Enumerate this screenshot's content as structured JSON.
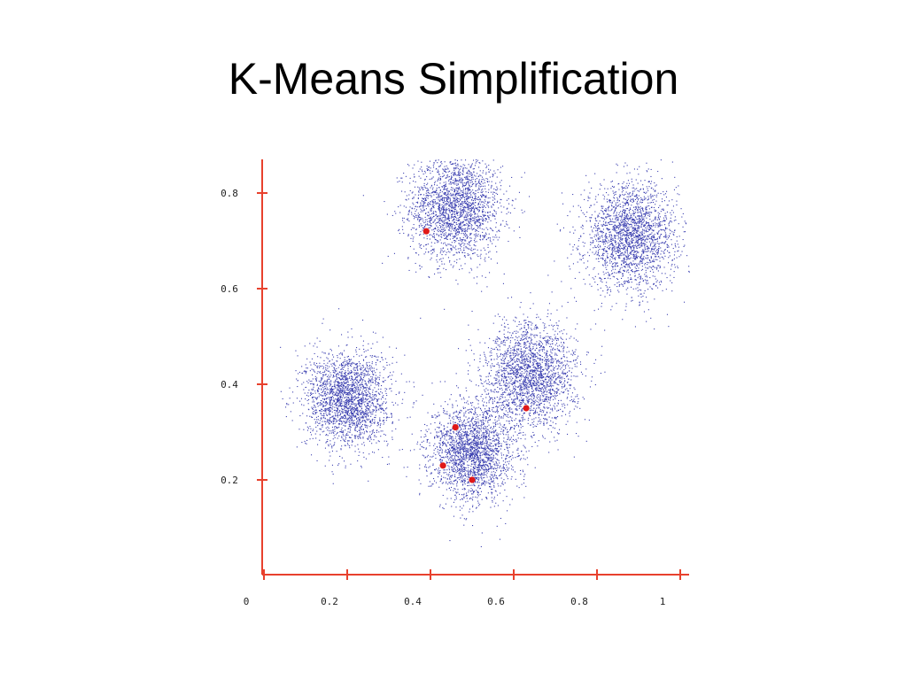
{
  "slide": {
    "title": "K-Means Simplification"
  },
  "colors": {
    "axis": "#e8412d",
    "points": "#3b3fb0",
    "centroids": "#e01818",
    "background": "#ffffff",
    "title": "#000000"
  },
  "chart_data": {
    "type": "scatter",
    "title": "",
    "xlabel": "",
    "ylabel": "",
    "xlim": [
      0,
      1.02
    ],
    "ylim": [
      0.1,
      0.95
    ],
    "grid": false,
    "legend": "none",
    "x_ticks": [
      0,
      0.2,
      0.4,
      0.6,
      0.8,
      1
    ],
    "x_tick_labels": [
      "0",
      "0.2",
      "0.4",
      "0.6",
      "0.8",
      "1"
    ],
    "y_ticks": [
      0.2,
      0.4,
      0.6,
      0.8
    ],
    "y_tick_labels": [
      "0.2",
      "0.4",
      "0.6",
      "0.8"
    ],
    "clusters": [
      {
        "center": [
          0.46,
          0.77
        ],
        "spread": 0.055,
        "count": 2200
      },
      {
        "center": [
          0.88,
          0.71
        ],
        "spread": 0.055,
        "count": 2200
      },
      {
        "center": [
          0.2,
          0.37
        ],
        "spread": 0.05,
        "count": 2200
      },
      {
        "center": [
          0.64,
          0.42
        ],
        "spread": 0.055,
        "count": 2200
      },
      {
        "center": [
          0.5,
          0.26
        ],
        "spread": 0.05,
        "count": 2200
      }
    ],
    "centroids": [
      {
        "x": 0.39,
        "y": 0.72
      },
      {
        "x": 0.46,
        "y": 0.31
      },
      {
        "x": 0.43,
        "y": 0.23
      },
      {
        "x": 0.5,
        "y": 0.2
      },
      {
        "x": 0.63,
        "y": 0.35
      }
    ]
  }
}
